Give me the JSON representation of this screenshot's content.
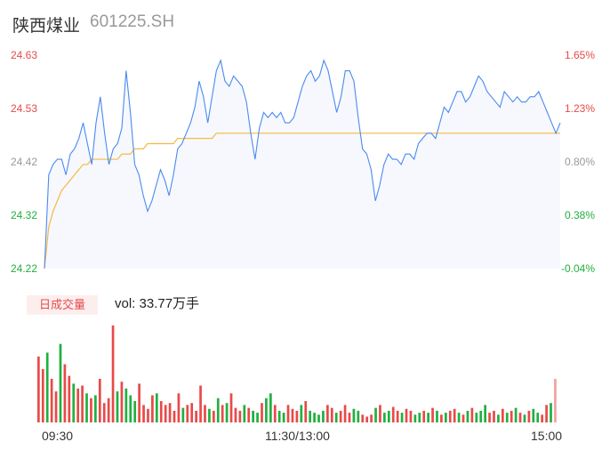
{
  "stock": {
    "name": "陕西煤业",
    "code": "601225.SH"
  },
  "volume": {
    "tag": "日成交量",
    "label": "vol: 33.77万手"
  },
  "colors": {
    "price_line": "#4a8af0",
    "avg_line": "#f5b942",
    "up": "#e84a4a",
    "down": "#20b040",
    "neutral": "#999999",
    "area_fill": "#f6f8fd"
  },
  "chart_data": {
    "type": "line",
    "price_axis": {
      "ylim": [
        24.22,
        24.63
      ],
      "left_ticks": [
        "24.63",
        "24.53",
        "24.42",
        "24.32",
        "24.22"
      ],
      "right_ticks": [
        "1.65%",
        "1.23%",
        "0.80%",
        "0.38%",
        "-0.04%"
      ]
    },
    "time_labels": [
      "09:30",
      "11:30/13:00",
      "15:00"
    ],
    "series": [
      {
        "values": [
          24.22,
          24.4,
          24.42,
          24.43,
          24.43,
          24.4,
          24.44,
          24.45,
          24.47,
          24.5,
          24.46,
          24.42,
          24.5,
          24.55,
          24.48,
          24.42,
          24.45,
          24.46,
          24.49,
          24.6,
          24.52,
          24.42,
          24.4,
          24.36,
          24.33,
          24.35,
          24.38,
          24.41,
          24.39,
          24.36,
          24.4,
          24.45,
          24.46,
          24.48,
          24.5,
          24.53,
          24.58,
          24.55,
          24.5,
          24.55,
          24.6,
          24.62,
          24.58,
          24.57,
          24.59,
          24.58,
          24.57,
          24.54,
          24.48,
          24.43,
          24.49,
          24.52,
          24.51,
          24.52,
          24.51,
          24.52,
          24.5,
          24.5,
          24.51,
          24.54,
          24.57,
          24.59,
          24.6,
          24.58,
          24.59,
          24.62,
          24.6,
          24.56,
          24.52,
          24.55,
          24.6,
          24.6,
          24.58,
          24.51,
          24.45,
          24.44,
          24.41,
          24.35,
          24.38,
          24.42,
          24.44,
          24.43,
          24.43,
          24.42,
          24.44,
          24.44,
          24.43,
          24.46,
          24.47,
          24.48,
          24.48,
          24.47,
          24.5,
          24.53,
          24.52,
          24.54,
          24.56,
          24.56,
          24.54,
          24.55,
          24.57,
          24.59,
          24.58,
          24.56,
          24.55,
          24.54,
          24.53,
          24.56,
          24.55,
          24.54,
          24.55,
          24.54,
          24.54,
          24.55,
          24.55,
          24.56,
          24.54,
          24.52,
          24.5,
          24.48,
          24.5
        ],
        "color": "#4a8af0"
      },
      {
        "values": [
          24.22,
          24.3,
          24.33,
          24.35,
          24.37,
          24.38,
          24.39,
          24.4,
          24.41,
          24.42,
          24.42,
          24.43,
          24.43,
          24.43,
          24.43,
          24.43,
          24.43,
          24.43,
          24.44,
          24.44,
          24.44,
          24.45,
          24.45,
          24.45,
          24.46,
          24.46,
          24.46,
          24.46,
          24.46,
          24.46,
          24.46,
          24.47,
          24.47,
          24.47,
          24.47,
          24.47,
          24.47,
          24.47,
          24.47,
          24.47,
          24.48,
          24.48,
          24.48,
          24.48,
          24.48,
          24.48,
          24.48,
          24.48,
          24.48,
          24.48,
          24.48,
          24.48,
          24.48,
          24.48,
          24.48,
          24.48,
          24.48,
          24.48,
          24.48,
          24.48,
          24.48,
          24.48,
          24.48,
          24.48,
          24.48,
          24.48,
          24.48,
          24.48,
          24.48,
          24.48,
          24.48,
          24.48,
          24.48,
          24.48,
          24.48,
          24.48,
          24.48,
          24.48,
          24.48,
          24.48,
          24.48,
          24.48,
          24.48,
          24.48,
          24.48,
          24.48,
          24.48,
          24.48,
          24.48,
          24.48,
          24.48,
          24.48,
          24.48,
          24.48,
          24.48,
          24.48,
          24.48,
          24.48,
          24.48,
          24.48,
          24.48,
          24.48,
          24.48,
          24.48,
          24.48,
          24.48,
          24.48,
          24.48,
          24.48,
          24.48,
          24.48,
          24.48,
          24.48,
          24.48,
          24.48,
          24.48,
          24.48,
          24.48,
          24.48,
          24.48,
          24.48
        ],
        "color": "#f5b942"
      }
    ],
    "volume_bars": [
      {
        "v": 0.68,
        "d": "up"
      },
      {
        "v": 0.55,
        "d": "up"
      },
      {
        "v": 0.72,
        "d": "down"
      },
      {
        "v": 0.45,
        "d": "up"
      },
      {
        "v": 0.32,
        "d": "up"
      },
      {
        "v": 0.81,
        "d": "down"
      },
      {
        "v": 0.6,
        "d": "up"
      },
      {
        "v": 0.48,
        "d": "up"
      },
      {
        "v": 0.4,
        "d": "down"
      },
      {
        "v": 0.35,
        "d": "up"
      },
      {
        "v": 0.38,
        "d": "up"
      },
      {
        "v": 0.3,
        "d": "down"
      },
      {
        "v": 0.25,
        "d": "up"
      },
      {
        "v": 0.28,
        "d": "down"
      },
      {
        "v": 0.45,
        "d": "up"
      },
      {
        "v": 0.2,
        "d": "up"
      },
      {
        "v": 0.25,
        "d": "up"
      },
      {
        "v": 1.0,
        "d": "up"
      },
      {
        "v": 0.32,
        "d": "down"
      },
      {
        "v": 0.42,
        "d": "up"
      },
      {
        "v": 0.35,
        "d": "down"
      },
      {
        "v": 0.28,
        "d": "down"
      },
      {
        "v": 0.22,
        "d": "down"
      },
      {
        "v": 0.4,
        "d": "up"
      },
      {
        "v": 0.18,
        "d": "up"
      },
      {
        "v": 0.14,
        "d": "up"
      },
      {
        "v": 0.28,
        "d": "up"
      },
      {
        "v": 0.3,
        "d": "down"
      },
      {
        "v": 0.22,
        "d": "up"
      },
      {
        "v": 0.18,
        "d": "up"
      },
      {
        "v": 0.2,
        "d": "up"
      },
      {
        "v": 0.12,
        "d": "up"
      },
      {
        "v": 0.3,
        "d": "up"
      },
      {
        "v": 0.15,
        "d": "down"
      },
      {
        "v": 0.18,
        "d": "up"
      },
      {
        "v": 0.2,
        "d": "up"
      },
      {
        "v": 0.12,
        "d": "up"
      },
      {
        "v": 0.38,
        "d": "up"
      },
      {
        "v": 0.18,
        "d": "up"
      },
      {
        "v": 0.14,
        "d": "down"
      },
      {
        "v": 0.12,
        "d": "up"
      },
      {
        "v": 0.25,
        "d": "down"
      },
      {
        "v": 0.18,
        "d": "up"
      },
      {
        "v": 0.2,
        "d": "down"
      },
      {
        "v": 0.3,
        "d": "up"
      },
      {
        "v": 0.15,
        "d": "up"
      },
      {
        "v": 0.12,
        "d": "up"
      },
      {
        "v": 0.18,
        "d": "down"
      },
      {
        "v": 0.15,
        "d": "up"
      },
      {
        "v": 0.12,
        "d": "down"
      },
      {
        "v": 0.1,
        "d": "down"
      },
      {
        "v": 0.2,
        "d": "up"
      },
      {
        "v": 0.25,
        "d": "down"
      },
      {
        "v": 0.3,
        "d": "down"
      },
      {
        "v": 0.18,
        "d": "up"
      },
      {
        "v": 0.12,
        "d": "down"
      },
      {
        "v": 0.1,
        "d": "down"
      },
      {
        "v": 0.18,
        "d": "up"
      },
      {
        "v": 0.14,
        "d": "up"
      },
      {
        "v": 0.12,
        "d": "up"
      },
      {
        "v": 0.18,
        "d": "down"
      },
      {
        "v": 0.22,
        "d": "up"
      },
      {
        "v": 0.12,
        "d": "down"
      },
      {
        "v": 0.1,
        "d": "down"
      },
      {
        "v": 0.08,
        "d": "down"
      },
      {
        "v": 0.12,
        "d": "down"
      },
      {
        "v": 0.18,
        "d": "up"
      },
      {
        "v": 0.15,
        "d": "up"
      },
      {
        "v": 0.1,
        "d": "down"
      },
      {
        "v": 0.12,
        "d": "up"
      },
      {
        "v": 0.18,
        "d": "up"
      },
      {
        "v": 0.1,
        "d": "up"
      },
      {
        "v": 0.14,
        "d": "down"
      },
      {
        "v": 0.12,
        "d": "down"
      },
      {
        "v": 0.08,
        "d": "up"
      },
      {
        "v": 0.06,
        "d": "up"
      },
      {
        "v": 0.08,
        "d": "up"
      },
      {
        "v": 0.15,
        "d": "down"
      },
      {
        "v": 0.18,
        "d": "up"
      },
      {
        "v": 0.1,
        "d": "down"
      },
      {
        "v": 0.12,
        "d": "down"
      },
      {
        "v": 0.16,
        "d": "up"
      },
      {
        "v": 0.12,
        "d": "up"
      },
      {
        "v": 0.1,
        "d": "down"
      },
      {
        "v": 0.14,
        "d": "up"
      },
      {
        "v": 0.12,
        "d": "up"
      },
      {
        "v": 0.08,
        "d": "down"
      },
      {
        "v": 0.1,
        "d": "down"
      },
      {
        "v": 0.12,
        "d": "up"
      },
      {
        "v": 0.1,
        "d": "down"
      },
      {
        "v": 0.15,
        "d": "up"
      },
      {
        "v": 0.12,
        "d": "down"
      },
      {
        "v": 0.08,
        "d": "up"
      },
      {
        "v": 0.1,
        "d": "down"
      },
      {
        "v": 0.12,
        "d": "up"
      },
      {
        "v": 0.14,
        "d": "up"
      },
      {
        "v": 0.1,
        "d": "down"
      },
      {
        "v": 0.08,
        "d": "up"
      },
      {
        "v": 0.12,
        "d": "down"
      },
      {
        "v": 0.15,
        "d": "up"
      },
      {
        "v": 0.1,
        "d": "down"
      },
      {
        "v": 0.12,
        "d": "down"
      },
      {
        "v": 0.18,
        "d": "down"
      },
      {
        "v": 0.1,
        "d": "up"
      },
      {
        "v": 0.12,
        "d": "up"
      },
      {
        "v": 0.08,
        "d": "down"
      },
      {
        "v": 0.14,
        "d": "up"
      },
      {
        "v": 0.1,
        "d": "down"
      },
      {
        "v": 0.12,
        "d": "up"
      },
      {
        "v": 0.15,
        "d": "down"
      },
      {
        "v": 0.1,
        "d": "up"
      },
      {
        "v": 0.08,
        "d": "down"
      },
      {
        "v": 0.12,
        "d": "up"
      },
      {
        "v": 0.14,
        "d": "down"
      },
      {
        "v": 0.1,
        "d": "down"
      },
      {
        "v": 0.08,
        "d": "up"
      },
      {
        "v": 0.18,
        "d": "up"
      },
      {
        "v": 0.2,
        "d": "down"
      },
      {
        "v": 0.45,
        "d": "neutral"
      }
    ]
  }
}
